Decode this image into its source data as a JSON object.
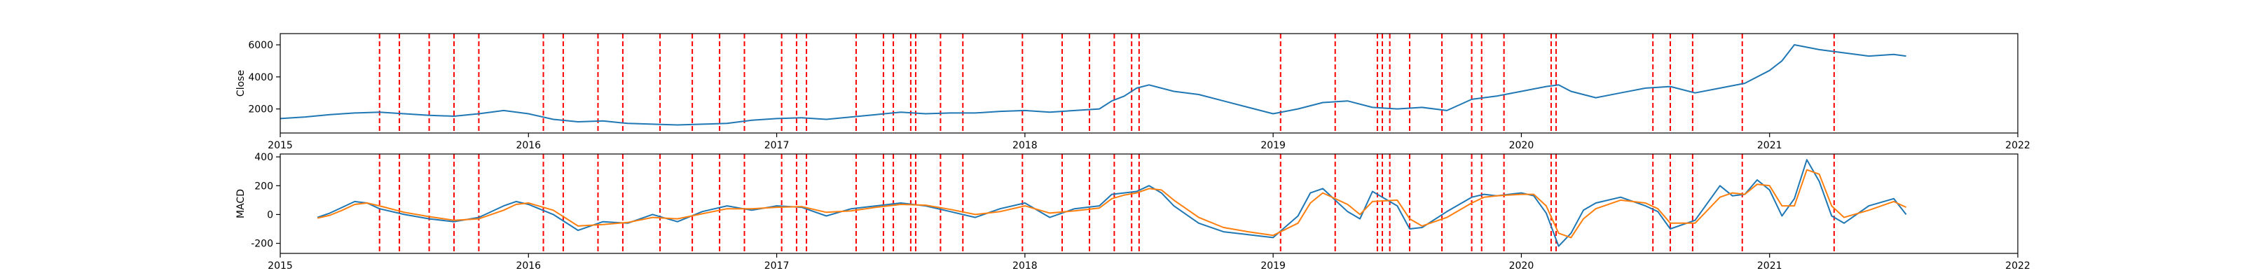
{
  "colors": {
    "close_line": "#1f77b4",
    "macd_line": "#1f77b4",
    "signal_line": "#ff7f0e",
    "event_line": "#ff0000",
    "frame": "#000000"
  },
  "chart_data": [
    {
      "id": "close",
      "type": "line",
      "ylabel": "Close",
      "xlim": [
        2015.0,
        2022.0
      ],
      "xticks": [
        "2015",
        "2016",
        "2017",
        "2018",
        "2019",
        "2020",
        "2021",
        "2022"
      ],
      "ylim": [
        500,
        6700
      ],
      "yticks": [
        2000,
        4000,
        6000
      ],
      "grid": false,
      "series": [
        {
          "x": [
            2015.0,
            2015.1,
            2015.2,
            2015.3,
            2015.4,
            2015.5,
            2015.6,
            2015.7,
            2015.8,
            2015.9,
            2016.0,
            2016.1,
            2016.2,
            2016.3,
            2016.4,
            2016.5,
            2016.6,
            2016.7,
            2016.8,
            2016.9,
            2017.0,
            2017.1,
            2017.2,
            2017.3,
            2017.4,
            2017.5,
            2017.6,
            2017.7,
            2017.8,
            2017.9,
            2018.0,
            2018.1,
            2018.2,
            2018.3,
            2018.35,
            2018.4,
            2018.45,
            2018.5,
            2018.6,
            2018.7,
            2018.8,
            2018.9,
            2019.0,
            2019.1,
            2019.2,
            2019.3,
            2019.4,
            2019.5,
            2019.6,
            2019.7,
            2019.8,
            2019.9,
            2020.0,
            2020.1,
            2020.15,
            2020.2,
            2020.3,
            2020.4,
            2020.5,
            2020.6,
            2020.7,
            2020.8,
            2020.9,
            2021.0,
            2021.05,
            2021.1,
            2021.2,
            2021.3,
            2021.4,
            2021.5,
            2021.55
          ],
          "y": [
            1400,
            1500,
            1650,
            1750,
            1800,
            1700,
            1600,
            1550,
            1700,
            1900,
            1700,
            1350,
            1200,
            1250,
            1100,
            1050,
            1000,
            1050,
            1100,
            1300,
            1400,
            1450,
            1350,
            1500,
            1650,
            1800,
            1700,
            1750,
            1750,
            1850,
            1900,
            1800,
            1900,
            2000,
            2500,
            2800,
            3300,
            3500,
            3100,
            2900,
            2500,
            2100,
            1700,
            2000,
            2400,
            2500,
            2100,
            2000,
            2100,
            1900,
            2600,
            2800,
            3100,
            3400,
            3500,
            3100,
            2700,
            3000,
            3300,
            3400,
            3000,
            3300,
            3600,
            4400,
            5000,
            6000,
            5700,
            5500,
            5300,
            5400,
            5300
          ]
        }
      ],
      "events": [
        2015.4,
        2015.48,
        2015.6,
        2015.7,
        2015.8,
        2016.06,
        2016.14,
        2016.28,
        2016.38,
        2016.53,
        2016.66,
        2016.77,
        2016.87,
        2017.02,
        2017.08,
        2017.12,
        2017.32,
        2017.43,
        2017.47,
        2017.54,
        2017.56,
        2017.66,
        2017.75,
        2017.99,
        2018.15,
        2018.26,
        2018.36,
        2018.43,
        2018.46,
        2019.03,
        2019.25,
        2019.42,
        2019.44,
        2019.47,
        2019.55,
        2019.68,
        2019.8,
        2019.84,
        2019.93,
        2020.12,
        2020.14,
        2020.53,
        2020.6,
        2020.69,
        2020.89,
        2021.26
      ]
    },
    {
      "id": "macd",
      "type": "line",
      "ylabel": "MACD",
      "xlim": [
        2015.0,
        2022.0
      ],
      "xticks": [
        "2015",
        "2016",
        "2017",
        "2018",
        "2019",
        "2020",
        "2021",
        "2022"
      ],
      "ylim": [
        -270,
        420
      ],
      "yticks": [
        -200,
        0,
        200,
        400
      ],
      "grid": false,
      "series": [
        {
          "name": "",
          "color_key": "macd_line",
          "x": [
            2015.15,
            2015.2,
            2015.25,
            2015.3,
            2015.35,
            2015.4,
            2015.5,
            2015.6,
            2015.7,
            2015.8,
            2015.9,
            2015.95,
            2016.0,
            2016.1,
            2016.2,
            2016.3,
            2016.4,
            2016.5,
            2016.6,
            2016.7,
            2016.8,
            2016.9,
            2017.0,
            2017.1,
            2017.2,
            2017.3,
            2017.4,
            2017.5,
            2017.6,
            2017.7,
            2017.8,
            2017.9,
            2018.0,
            2018.1,
            2018.2,
            2018.3,
            2018.35,
            2018.4,
            2018.45,
            2018.5,
            2018.55,
            2018.6,
            2018.7,
            2018.8,
            2018.9,
            2019.0,
            2019.1,
            2019.15,
            2019.2,
            2019.3,
            2019.35,
            2019.4,
            2019.5,
            2019.55,
            2019.6,
            2019.7,
            2019.8,
            2019.85,
            2019.9,
            2020.0,
            2020.05,
            2020.1,
            2020.15,
            2020.2,
            2020.25,
            2020.3,
            2020.4,
            2020.5,
            2020.55,
            2020.6,
            2020.7,
            2020.8,
            2020.85,
            2020.9,
            2020.95,
            2021.0,
            2021.05,
            2021.1,
            2021.15,
            2021.2,
            2021.25,
            2021.3,
            2021.4,
            2021.5,
            2021.55
          ],
          "y": [
            -20,
            10,
            50,
            90,
            80,
            40,
            0,
            -30,
            -50,
            -20,
            60,
            90,
            70,
            0,
            -110,
            -50,
            -60,
            0,
            -50,
            20,
            60,
            30,
            60,
            50,
            -10,
            40,
            60,
            80,
            60,
            20,
            -20,
            40,
            80,
            -20,
            40,
            60,
            140,
            150,
            160,
            200,
            150,
            60,
            -60,
            -120,
            -140,
            -160,
            -10,
            150,
            180,
            20,
            -30,
            160,
            60,
            -100,
            -90,
            20,
            120,
            140,
            130,
            150,
            130,
            10,
            -220,
            -130,
            30,
            80,
            120,
            60,
            20,
            -100,
            -40,
            200,
            130,
            140,
            240,
            170,
            -10,
            110,
            380,
            230,
            -10,
            -60,
            60,
            110,
            0
          ]
        },
        {
          "name": "",
          "color_key": "signal_line",
          "x": [
            2015.15,
            2015.2,
            2015.25,
            2015.3,
            2015.35,
            2015.4,
            2015.5,
            2015.6,
            2015.7,
            2015.8,
            2015.9,
            2015.95,
            2016.0,
            2016.1,
            2016.2,
            2016.3,
            2016.4,
            2016.5,
            2016.6,
            2016.7,
            2016.8,
            2016.9,
            2017.0,
            2017.1,
            2017.2,
            2017.3,
            2017.4,
            2017.5,
            2017.6,
            2017.7,
            2017.8,
            2017.9,
            2018.0,
            2018.1,
            2018.2,
            2018.3,
            2018.35,
            2018.4,
            2018.45,
            2018.5,
            2018.55,
            2018.6,
            2018.7,
            2018.8,
            2018.9,
            2019.0,
            2019.1,
            2019.15,
            2019.2,
            2019.3,
            2019.35,
            2019.4,
            2019.5,
            2019.55,
            2019.6,
            2019.7,
            2019.8,
            2019.85,
            2019.9,
            2020.0,
            2020.05,
            2020.1,
            2020.15,
            2020.2,
            2020.25,
            2020.3,
            2020.4,
            2020.5,
            2020.55,
            2020.6,
            2020.7,
            2020.8,
            2020.85,
            2020.9,
            2020.95,
            2021.0,
            2021.05,
            2021.1,
            2021.15,
            2021.2,
            2021.25,
            2021.3,
            2021.4,
            2021.5,
            2021.55
          ],
          "y": [
            -25,
            -5,
            30,
            70,
            80,
            60,
            15,
            -15,
            -40,
            -30,
            30,
            70,
            80,
            30,
            -80,
            -70,
            -55,
            -20,
            -30,
            5,
            40,
            40,
            50,
            55,
            15,
            25,
            50,
            70,
            65,
            35,
            0,
            20,
            60,
            10,
            25,
            45,
            110,
            135,
            150,
            180,
            170,
            100,
            -20,
            -90,
            -120,
            -145,
            -60,
            80,
            150,
            70,
            0,
            90,
            100,
            -30,
            -80,
            -20,
            80,
            120,
            130,
            140,
            140,
            60,
            -130,
            -160,
            -30,
            40,
            100,
            80,
            40,
            -60,
            -60,
            120,
            150,
            140,
            210,
            200,
            60,
            60,
            310,
            280,
            60,
            -20,
            30,
            90,
            50
          ]
        }
      ],
      "events": [
        2015.4,
        2015.48,
        2015.6,
        2015.7,
        2015.8,
        2016.06,
        2016.14,
        2016.28,
        2016.38,
        2016.53,
        2016.66,
        2016.77,
        2016.87,
        2017.02,
        2017.08,
        2017.12,
        2017.32,
        2017.43,
        2017.47,
        2017.54,
        2017.56,
        2017.66,
        2017.75,
        2017.99,
        2018.15,
        2018.26,
        2018.36,
        2018.43,
        2018.46,
        2019.03,
        2019.25,
        2019.42,
        2019.44,
        2019.47,
        2019.55,
        2019.68,
        2019.8,
        2019.84,
        2019.93,
        2020.12,
        2020.14,
        2020.53,
        2020.6,
        2020.69,
        2020.89,
        2021.26
      ]
    }
  ]
}
